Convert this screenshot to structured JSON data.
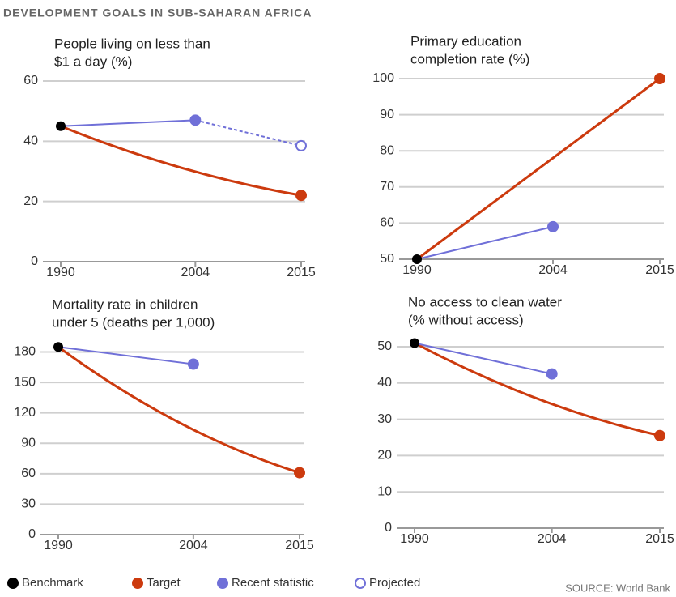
{
  "header": {
    "title": "DEVELOPMENT GOALS IN SUB-SAHARAN AFRICA",
    "source": "SOURCE: World Bank"
  },
  "legend": [
    {
      "name": "Benchmark",
      "color": "#000000",
      "marker": "filled"
    },
    {
      "name": "Target",
      "color": "#cc3a0e",
      "marker": "filled"
    },
    {
      "name": "Recent statistic",
      "color": "#7070d8",
      "marker": "filled"
    },
    {
      "name": "Projected",
      "color": "#7070d8",
      "marker": "open"
    }
  ],
  "chart_data": [
    {
      "type": "line",
      "title": [
        "People living on less than",
        "$1 a day (%)"
      ],
      "xlim": [
        1990,
        2015
      ],
      "xticks": [
        1990,
        2004,
        2015
      ],
      "ylim": [
        0,
        60
      ],
      "yticks": [
        0,
        20,
        40,
        60
      ],
      "grid": true,
      "benchmark": {
        "x": 1990,
        "value": 45
      },
      "target": {
        "x": [
          1990,
          2015
        ],
        "values": [
          45,
          22
        ],
        "smooth": true
      },
      "recent": {
        "x": [
          1990,
          2004
        ],
        "values": [
          45,
          47
        ]
      },
      "projected": {
        "x": [
          2004,
          2015
        ],
        "values": [
          47,
          38.5
        ],
        "dashed": true
      }
    },
    {
      "type": "line",
      "title": [
        "Primary education",
        "completion rate (%)"
      ],
      "xlim": [
        1990,
        2015
      ],
      "xticks": [
        1990,
        2004,
        2015
      ],
      "ylim": [
        50,
        100
      ],
      "yticks": [
        50,
        60,
        70,
        80,
        90,
        100
      ],
      "grid": true,
      "benchmark": {
        "x": 1990,
        "value": 50
      },
      "target": {
        "x": [
          1990,
          2015
        ],
        "values": [
          50,
          100
        ],
        "smooth": false
      },
      "recent": {
        "x": [
          1990,
          2004
        ],
        "values": [
          50,
          59
        ]
      }
    },
    {
      "type": "line",
      "title": [
        "Mortality rate in children",
        "under 5 (deaths per 1,000)"
      ],
      "xlim": [
        1990,
        2015
      ],
      "xticks": [
        1990,
        2004,
        2015
      ],
      "ylim": [
        0,
        190
      ],
      "yticks": [
        0,
        30,
        60,
        90,
        120,
        150,
        180
      ],
      "grid": true,
      "benchmark": {
        "x": 1990,
        "value": 185
      },
      "target": {
        "x": [
          1990,
          2015
        ],
        "values": [
          185,
          61
        ],
        "smooth": true
      },
      "recent": {
        "x": [
          1990,
          2004
        ],
        "values": [
          185,
          168
        ]
      }
    },
    {
      "type": "line",
      "title": [
        "No access to clean water",
        "(% without access)"
      ],
      "xlim": [
        1990,
        2015
      ],
      "xticks": [
        1990,
        2004,
        2015
      ],
      "ylim": [
        0,
        52
      ],
      "yticks": [
        0,
        10,
        20,
        30,
        40,
        50
      ],
      "grid": true,
      "benchmark": {
        "x": 1990,
        "value": 51
      },
      "target": {
        "x": [
          1990,
          2015
        ],
        "values": [
          51,
          25.5
        ],
        "smooth": true
      },
      "recent": {
        "x": [
          1990,
          2004
        ],
        "values": [
          51,
          42.5
        ]
      }
    }
  ]
}
